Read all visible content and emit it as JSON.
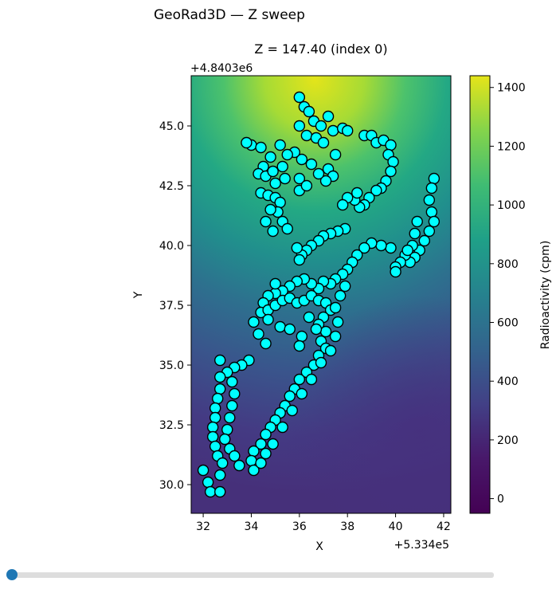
{
  "window": {
    "title": "GeoRad3D — Z sweep"
  },
  "chart_data": {
    "type": "heatmap",
    "title": "Z = 147.40  (index 0)",
    "xlabel": "X",
    "ylabel": "Y",
    "x_offset_label": "+5.334e5",
    "y_offset_label": "+4.8403e6",
    "xlim": [
      31.5,
      42.3
    ],
    "ylim": [
      28.8,
      47.1
    ],
    "x_ticks": [
      32,
      34,
      36,
      38,
      40,
      42
    ],
    "x_tick_labels": [
      "32",
      "34",
      "36",
      "38",
      "40",
      "42"
    ],
    "y_ticks": [
      30.0,
      32.5,
      35.0,
      37.5,
      40.0,
      42.5,
      45.0
    ],
    "y_tick_labels": [
      "30.0",
      "32.5",
      "35.0",
      "37.5",
      "40.0",
      "42.5",
      "45.0"
    ],
    "colorbar": {
      "label": "Radioactivity (cpm)",
      "colormap": "viridis",
      "range": [
        -50,
        1440
      ],
      "ticks": [
        0,
        200,
        400,
        600,
        800,
        1000,
        1200,
        1400
      ],
      "tick_labels": [
        "0",
        "200",
        "400",
        "600",
        "800",
        "1000",
        "1200",
        "1400"
      ]
    },
    "field": {
      "description_values": "interpolated radioactivity surface",
      "peak": {
        "x": 38.7,
        "y": 46.2,
        "value": 1420
      },
      "low": {
        "x": 41.2,
        "y": 31.0,
        "value": 250
      },
      "corner_values": {
        "top_left": 620,
        "top_right": 1050,
        "bottom_left": 480,
        "bottom_right": 270
      }
    },
    "sample_points": [
      {
        "x": 36.0,
        "y": 46.2
      },
      {
        "x": 36.2,
        "y": 45.8
      },
      {
        "x": 36.4,
        "y": 45.6
      },
      {
        "x": 36.6,
        "y": 45.2
      },
      {
        "x": 36.9,
        "y": 45.0
      },
      {
        "x": 37.2,
        "y": 45.4
      },
      {
        "x": 36.0,
        "y": 45.0
      },
      {
        "x": 36.3,
        "y": 44.6
      },
      {
        "x": 36.7,
        "y": 44.5
      },
      {
        "x": 37.0,
        "y": 44.3
      },
      {
        "x": 37.4,
        "y": 44.8
      },
      {
        "x": 37.8,
        "y": 44.9
      },
      {
        "x": 38.0,
        "y": 44.8
      },
      {
        "x": 38.7,
        "y": 44.6
      },
      {
        "x": 39.0,
        "y": 44.6
      },
      {
        "x": 39.2,
        "y": 44.3
      },
      {
        "x": 39.5,
        "y": 44.4
      },
      {
        "x": 39.8,
        "y": 44.2
      },
      {
        "x": 39.7,
        "y": 43.8
      },
      {
        "x": 39.9,
        "y": 43.5
      },
      {
        "x": 39.8,
        "y": 43.1
      },
      {
        "x": 39.6,
        "y": 42.7
      },
      {
        "x": 39.4,
        "y": 42.4
      },
      {
        "x": 39.2,
        "y": 42.3
      },
      {
        "x": 38.9,
        "y": 42.0
      },
      {
        "x": 38.7,
        "y": 41.7
      },
      {
        "x": 38.5,
        "y": 41.6
      },
      {
        "x": 38.3,
        "y": 41.9
      },
      {
        "x": 38.0,
        "y": 42.0
      },
      {
        "x": 37.8,
        "y": 41.7
      },
      {
        "x": 38.4,
        "y": 42.2
      },
      {
        "x": 37.5,
        "y": 43.8
      },
      {
        "x": 37.2,
        "y": 43.2
      },
      {
        "x": 37.4,
        "y": 42.9
      },
      {
        "x": 37.1,
        "y": 42.7
      },
      {
        "x": 36.8,
        "y": 43.0
      },
      {
        "x": 36.5,
        "y": 43.4
      },
      {
        "x": 36.1,
        "y": 43.6
      },
      {
        "x": 35.8,
        "y": 43.9
      },
      {
        "x": 35.5,
        "y": 43.8
      },
      {
        "x": 35.2,
        "y": 44.2
      },
      {
        "x": 34.8,
        "y": 43.7
      },
      {
        "x": 34.5,
        "y": 43.3
      },
      {
        "x": 34.3,
        "y": 43.0
      },
      {
        "x": 34.6,
        "y": 42.9
      },
      {
        "x": 34.9,
        "y": 43.1
      },
      {
        "x": 35.3,
        "y": 43.3
      },
      {
        "x": 35.0,
        "y": 42.6
      },
      {
        "x": 35.4,
        "y": 42.8
      },
      {
        "x": 36.0,
        "y": 42.8
      },
      {
        "x": 34.0,
        "y": 44.2
      },
      {
        "x": 33.8,
        "y": 44.3
      },
      {
        "x": 34.4,
        "y": 44.1
      },
      {
        "x": 36.0,
        "y": 42.3
      },
      {
        "x": 36.3,
        "y": 42.5
      },
      {
        "x": 34.4,
        "y": 42.2
      },
      {
        "x": 34.7,
        "y": 42.1
      },
      {
        "x": 35.0,
        "y": 42.0
      },
      {
        "x": 35.2,
        "y": 41.8
      },
      {
        "x": 35.1,
        "y": 41.4
      },
      {
        "x": 34.8,
        "y": 41.5
      },
      {
        "x": 34.6,
        "y": 41.0
      },
      {
        "x": 35.3,
        "y": 41.0
      },
      {
        "x": 35.5,
        "y": 40.7
      },
      {
        "x": 34.9,
        "y": 40.6
      },
      {
        "x": 37.9,
        "y": 40.7
      },
      {
        "x": 37.6,
        "y": 40.6
      },
      {
        "x": 37.3,
        "y": 40.5
      },
      {
        "x": 37.0,
        "y": 40.4
      },
      {
        "x": 36.8,
        "y": 40.2
      },
      {
        "x": 36.5,
        "y": 40.0
      },
      {
        "x": 36.3,
        "y": 39.8
      },
      {
        "x": 36.1,
        "y": 39.6
      },
      {
        "x": 35.9,
        "y": 39.9
      },
      {
        "x": 36.0,
        "y": 39.4
      },
      {
        "x": 41.6,
        "y": 42.8
      },
      {
        "x": 41.5,
        "y": 42.4
      },
      {
        "x": 41.4,
        "y": 41.9
      },
      {
        "x": 41.5,
        "y": 41.4
      },
      {
        "x": 41.6,
        "y": 41.0
      },
      {
        "x": 41.4,
        "y": 40.6
      },
      {
        "x": 41.2,
        "y": 40.2
      },
      {
        "x": 41.0,
        "y": 39.8
      },
      {
        "x": 40.8,
        "y": 39.5
      },
      {
        "x": 40.6,
        "y": 39.3
      },
      {
        "x": 40.4,
        "y": 39.6
      },
      {
        "x": 40.2,
        "y": 39.3
      },
      {
        "x": 40.0,
        "y": 39.1
      },
      {
        "x": 40.8,
        "y": 40.5
      },
      {
        "x": 40.9,
        "y": 41.0
      },
      {
        "x": 40.7,
        "y": 40.0
      },
      {
        "x": 40.5,
        "y": 39.8
      },
      {
        "x": 40.0,
        "y": 38.9
      },
      {
        "x": 39.8,
        "y": 39.9
      },
      {
        "x": 39.4,
        "y": 40.0
      },
      {
        "x": 39.0,
        "y": 40.1
      },
      {
        "x": 38.7,
        "y": 39.9
      },
      {
        "x": 38.4,
        "y": 39.6
      },
      {
        "x": 38.2,
        "y": 39.3
      },
      {
        "x": 38.0,
        "y": 39.0
      },
      {
        "x": 37.8,
        "y": 38.8
      },
      {
        "x": 37.5,
        "y": 38.6
      },
      {
        "x": 37.3,
        "y": 38.4
      },
      {
        "x": 37.0,
        "y": 38.5
      },
      {
        "x": 36.8,
        "y": 38.2
      },
      {
        "x": 36.5,
        "y": 38.4
      },
      {
        "x": 36.2,
        "y": 38.6
      },
      {
        "x": 35.9,
        "y": 38.5
      },
      {
        "x": 35.6,
        "y": 38.3
      },
      {
        "x": 35.3,
        "y": 38.1
      },
      {
        "x": 35.0,
        "y": 38.0
      },
      {
        "x": 34.7,
        "y": 37.9
      },
      {
        "x": 34.5,
        "y": 37.6
      },
      {
        "x": 34.4,
        "y": 37.2
      },
      {
        "x": 34.7,
        "y": 37.3
      },
      {
        "x": 35.0,
        "y": 37.5
      },
      {
        "x": 35.3,
        "y": 37.7
      },
      {
        "x": 35.6,
        "y": 37.8
      },
      {
        "x": 35.9,
        "y": 37.6
      },
      {
        "x": 36.2,
        "y": 37.7
      },
      {
        "x": 36.5,
        "y": 37.9
      },
      {
        "x": 36.8,
        "y": 37.7
      },
      {
        "x": 37.1,
        "y": 37.6
      },
      {
        "x": 37.3,
        "y": 37.3
      },
      {
        "x": 37.0,
        "y": 37.0
      },
      {
        "x": 36.8,
        "y": 36.7
      },
      {
        "x": 37.1,
        "y": 36.4
      },
      {
        "x": 36.9,
        "y": 36.0
      },
      {
        "x": 37.1,
        "y": 35.7
      },
      {
        "x": 36.8,
        "y": 35.4
      },
      {
        "x": 36.6,
        "y": 35.0
      },
      {
        "x": 36.3,
        "y": 34.7
      },
      {
        "x": 36.0,
        "y": 34.4
      },
      {
        "x": 35.8,
        "y": 34.0
      },
      {
        "x": 35.6,
        "y": 33.7
      },
      {
        "x": 35.4,
        "y": 33.3
      },
      {
        "x": 35.2,
        "y": 33.0
      },
      {
        "x": 35.0,
        "y": 32.7
      },
      {
        "x": 34.8,
        "y": 32.4
      },
      {
        "x": 34.6,
        "y": 32.1
      },
      {
        "x": 34.4,
        "y": 31.7
      },
      {
        "x": 34.1,
        "y": 31.4
      },
      {
        "x": 34.0,
        "y": 31.0
      },
      {
        "x": 34.1,
        "y": 30.6
      },
      {
        "x": 34.4,
        "y": 30.9
      },
      {
        "x": 34.6,
        "y": 31.3
      },
      {
        "x": 34.9,
        "y": 31.7
      },
      {
        "x": 35.3,
        "y": 32.4
      },
      {
        "x": 35.7,
        "y": 33.1
      },
      {
        "x": 36.1,
        "y": 33.8
      },
      {
        "x": 36.5,
        "y": 34.4
      },
      {
        "x": 36.9,
        "y": 35.1
      },
      {
        "x": 37.3,
        "y": 35.6
      },
      {
        "x": 37.5,
        "y": 36.2
      },
      {
        "x": 37.6,
        "y": 36.8
      },
      {
        "x": 37.5,
        "y": 37.4
      },
      {
        "x": 37.7,
        "y": 37.9
      },
      {
        "x": 37.9,
        "y": 38.3
      },
      {
        "x": 35.2,
        "y": 36.6
      },
      {
        "x": 35.6,
        "y": 36.5
      },
      {
        "x": 36.1,
        "y": 36.2
      },
      {
        "x": 36.0,
        "y": 35.8
      },
      {
        "x": 34.1,
        "y": 36.8
      },
      {
        "x": 34.3,
        "y": 36.3
      },
      {
        "x": 34.6,
        "y": 35.9
      },
      {
        "x": 33.9,
        "y": 35.2
      },
      {
        "x": 33.6,
        "y": 35.0
      },
      {
        "x": 33.3,
        "y": 34.9
      },
      {
        "x": 33.0,
        "y": 34.7
      },
      {
        "x": 32.7,
        "y": 34.5
      },
      {
        "x": 32.7,
        "y": 34.0
      },
      {
        "x": 32.6,
        "y": 33.6
      },
      {
        "x": 32.5,
        "y": 33.2
      },
      {
        "x": 32.5,
        "y": 32.8
      },
      {
        "x": 32.4,
        "y": 32.4
      },
      {
        "x": 32.4,
        "y": 32.0
      },
      {
        "x": 32.5,
        "y": 31.6
      },
      {
        "x": 32.6,
        "y": 31.2
      },
      {
        "x": 32.8,
        "y": 30.9
      },
      {
        "x": 32.7,
        "y": 30.4
      },
      {
        "x": 32.0,
        "y": 30.6
      },
      {
        "x": 32.2,
        "y": 30.1
      },
      {
        "x": 32.3,
        "y": 29.7
      },
      {
        "x": 32.7,
        "y": 29.7
      },
      {
        "x": 32.7,
        "y": 35.2
      },
      {
        "x": 33.2,
        "y": 34.3
      },
      {
        "x": 33.3,
        "y": 33.8
      },
      {
        "x": 33.2,
        "y": 33.3
      },
      {
        "x": 33.1,
        "y": 32.8
      },
      {
        "x": 33.0,
        "y": 32.3
      },
      {
        "x": 32.9,
        "y": 31.9
      },
      {
        "x": 33.1,
        "y": 31.5
      },
      {
        "x": 33.3,
        "y": 31.2
      },
      {
        "x": 33.5,
        "y": 30.8
      },
      {
        "x": 34.7,
        "y": 36.9
      },
      {
        "x": 35.0,
        "y": 38.4
      },
      {
        "x": 36.4,
        "y": 37.0
      },
      {
        "x": 36.7,
        "y": 36.5
      }
    ]
  }
}
